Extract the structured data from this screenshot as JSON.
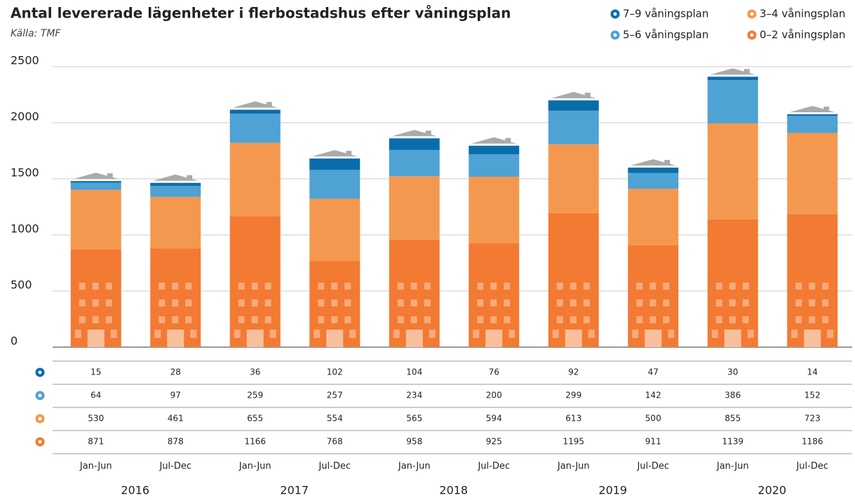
{
  "chart_data": {
    "type": "stacked-bar",
    "title": "Antal levererade lägenheter i flerbostadshus efter våningsplan",
    "subtitle": "Källa: TMF",
    "categories": [
      "Jan-Jun",
      "Jul-Dec",
      "Jan-Jun",
      "Jul-Dec",
      "Jan-Jun",
      "Jul-Dec",
      "Jan-Jun",
      "Jul-Dec",
      "Jan-Jun",
      "Jul-Dec"
    ],
    "years": [
      "2016",
      "2017",
      "2018",
      "2019",
      "2020"
    ],
    "series": [
      {
        "name": "0–2 våningsplan",
        "color": "#f37a32",
        "values": [
          871,
          878,
          1166,
          768,
          958,
          925,
          1195,
          911,
          1139,
          1186
        ]
      },
      {
        "name": "3–4 våningsplan",
        "color": "#f5984f",
        "values": [
          530,
          461,
          655,
          554,
          565,
          594,
          613,
          500,
          855,
          723
        ]
      },
      {
        "name": "5–6 våningsplan",
        "color": "#4ea2d4",
        "values": [
          64,
          97,
          259,
          257,
          234,
          200,
          299,
          142,
          386,
          152
        ]
      },
      {
        "name": "7–9 våningsplan",
        "color": "#0a6dab",
        "values": [
          15,
          28,
          36,
          102,
          104,
          76,
          92,
          47,
          30,
          14
        ]
      }
    ],
    "ylim": [
      0,
      2500
    ],
    "yticks": [
      0,
      500,
      1000,
      1500,
      2000,
      2500
    ],
    "grid": true
  }
}
